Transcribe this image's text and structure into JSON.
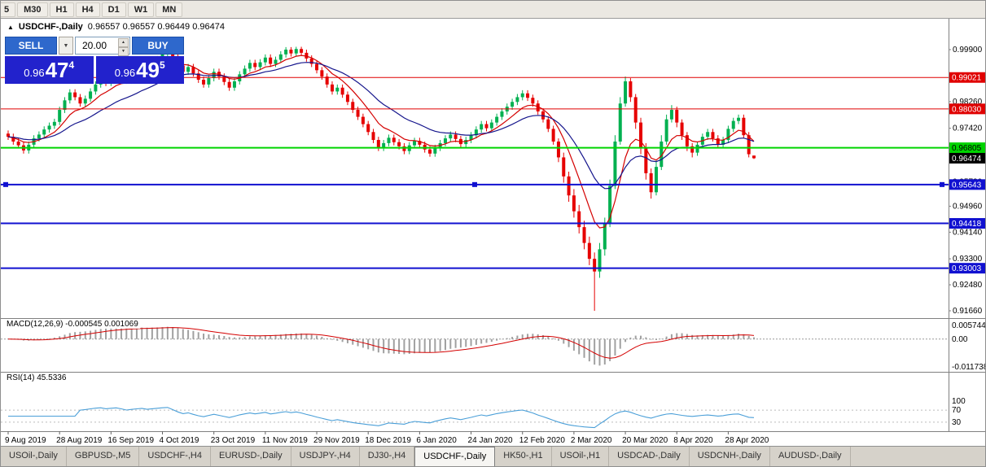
{
  "timeframe_toolbar": {
    "items": [
      "5",
      "M30",
      "H1",
      "H4",
      "D1",
      "W1",
      "MN"
    ]
  },
  "chart": {
    "title": "USDCHF-,Daily",
    "ohlc": "0.96557 0.96557 0.96449 0.96474"
  },
  "icons": {
    "collapse": "▲",
    "dropdown": "▼",
    "spin_up": "▲",
    "spin_down": "▼"
  },
  "trade_panel": {
    "sell_label": "SELL",
    "buy_label": "BUY",
    "volume": "20.00",
    "sell_price": {
      "prefix": "0.96",
      "big": "47",
      "sup": "4"
    },
    "buy_price": {
      "prefix": "0.96",
      "big": "49",
      "sup": "5"
    }
  },
  "colors": {
    "bull": "#00b050",
    "bear": "#e60000",
    "ma_fast": "#d40000",
    "ma_slow": "#15158c",
    "macd_hist": "#a0a0a0",
    "macd_signal": "#d40000",
    "rsi_line": "#4a9fd8",
    "panel_blue": "#2222cc",
    "button_blue": "#2e68cc"
  },
  "price_axis": {
    "ticks": [
      "0.99900",
      "0.98260",
      "0.97420",
      "0.95730",
      "0.94960",
      "0.94140",
      "0.93300",
      "0.92480",
      "0.91660"
    ],
    "current": {
      "value": 0.96474,
      "label": "0.96474",
      "bg": "#000000",
      "fg": "#ffffff"
    }
  },
  "levels": [
    {
      "value": 0.99021,
      "label": "0.99021",
      "color": "#e00000",
      "text_color": "#ffffff",
      "width": 1,
      "handles": false
    },
    {
      "value": 0.9803,
      "label": "0.98030",
      "color": "#e00000",
      "text_color": "#ffffff",
      "width": 1,
      "handles": false
    },
    {
      "value": 0.96805,
      "label": "0.96805",
      "color": "#00d400",
      "text_color": "#000000",
      "width": 2,
      "handles": false
    },
    {
      "value": 0.95643,
      "label": "0.95643",
      "color": "#1010d0",
      "text_color": "#ffffff",
      "width": 2,
      "handles": true
    },
    {
      "value": 0.94418,
      "label": "0.94418",
      "color": "#1010d0",
      "text_color": "#ffffff",
      "width": 2,
      "handles": false
    },
    {
      "value": 0.93003,
      "label": "0.93003",
      "color": "#1010d0",
      "text_color": "#ffffff",
      "width": 2,
      "handles": false
    }
  ],
  "macd_panel": {
    "label": "MACD(12,26,9) -0.000545 0.001069",
    "ticks": [
      "0.005744",
      "0.00",
      "-0.011738"
    ]
  },
  "rsi_panel": {
    "label": "RSI(14) 45.5336",
    "ticks": [
      "100",
      "70",
      "30"
    ],
    "levels": [
      70,
      30
    ]
  },
  "tabs": {
    "active_index": 6,
    "items": [
      "USOil-,Daily",
      "GBPUSD-,M5",
      "USDCHF-,H4",
      "EURUSD-,Daily",
      "USDJPY-,H4",
      "DJ30-,H4",
      "USDCHF-,Daily",
      "HK50-,H1",
      "USOil-,H1",
      "USDCAD-,Daily",
      "USDCNH-,Daily",
      "AUDUSD-,Daily"
    ]
  },
  "chart_data": {
    "type": "candlestick",
    "symbol": "USDCHF-",
    "timeframe": "Daily",
    "title": "USDCHF-,Daily",
    "x_labels": [
      "9 Aug 2019",
      "28 Aug 2019",
      "16 Sep 2019",
      "4 Oct 2019",
      "23 Oct 2019",
      "11 Nov 2019",
      "29 Nov 2019",
      "18 Dec 2019",
      "6 Jan 2020",
      "24 Jan 2020",
      "12 Feb 2020",
      "2 Mar 2020",
      "20 Mar 2020",
      "8 Apr 2020",
      "28 Apr 2020"
    ],
    "label_every": 10,
    "y_range": [
      0.9166,
      0.999
    ],
    "overlays": [
      {
        "name": "MA fast",
        "type": "ema",
        "period": 8,
        "color": "#d40000"
      },
      {
        "name": "MA slow",
        "type": "ema",
        "period": 20,
        "color": "#15158c"
      }
    ],
    "indicators": [
      {
        "name": "MACD",
        "params": [
          12,
          26,
          9
        ],
        "readout": "-0.000545 0.001069",
        "scale": [
          0.005744,
          0.0,
          -0.011738
        ]
      },
      {
        "name": "RSI",
        "params": [
          14
        ],
        "readout": "45.5336",
        "scale": [
          100,
          70,
          30
        ]
      }
    ],
    "candles": [
      [
        0.9725,
        0.9735,
        0.9705,
        0.9715
      ],
      [
        0.9715,
        0.9725,
        0.969,
        0.97
      ],
      [
        0.97,
        0.971,
        0.9678,
        0.9688
      ],
      [
        0.9688,
        0.9698,
        0.9662,
        0.9672
      ],
      [
        0.9672,
        0.97,
        0.9662,
        0.969
      ],
      [
        0.969,
        0.972,
        0.968,
        0.971
      ],
      [
        0.971,
        0.9732,
        0.97,
        0.9722
      ],
      [
        0.9722,
        0.9748,
        0.9712,
        0.9738
      ],
      [
        0.9738,
        0.976,
        0.9728,
        0.975
      ],
      [
        0.975,
        0.9772,
        0.974,
        0.9762
      ],
      [
        0.9762,
        0.981,
        0.9752,
        0.98
      ],
      [
        0.98,
        0.984,
        0.979,
        0.983
      ],
      [
        0.983,
        0.9865,
        0.982,
        0.9855
      ],
      [
        0.9855,
        0.9865,
        0.983,
        0.984
      ],
      [
        0.984,
        0.985,
        0.981,
        0.982
      ],
      [
        0.982,
        0.9845,
        0.981,
        0.9835
      ],
      [
        0.9835,
        0.9868,
        0.9825,
        0.9858
      ],
      [
        0.9858,
        0.989,
        0.9848,
        0.988
      ],
      [
        0.988,
        0.9905,
        0.987,
        0.9895
      ],
      [
        0.9895,
        0.9905,
        0.9875,
        0.9885
      ],
      [
        0.9885,
        0.991,
        0.9875,
        0.99
      ],
      [
        0.99,
        0.9925,
        0.989,
        0.9915
      ],
      [
        0.9915,
        0.9925,
        0.9895,
        0.9905
      ],
      [
        0.9905,
        0.9915,
        0.9882,
        0.9892
      ],
      [
        0.9892,
        0.9918,
        0.9882,
        0.9908
      ],
      [
        0.9908,
        0.9935,
        0.9898,
        0.9925
      ],
      [
        0.9925,
        0.995,
        0.9915,
        0.994
      ],
      [
        0.994,
        0.995,
        0.992,
        0.993
      ],
      [
        0.993,
        0.9955,
        0.992,
        0.9945
      ],
      [
        0.9945,
        0.997,
        0.9935,
        0.996
      ],
      [
        0.996,
        0.9985,
        0.995,
        0.9975
      ],
      [
        0.9975,
        0.9995,
        0.9965,
        0.9985
      ],
      [
        0.9985,
        0.9995,
        0.9955,
        0.9965
      ],
      [
        0.9965,
        0.9975,
        0.993,
        0.994
      ],
      [
        0.994,
        0.995,
        0.991,
        0.992
      ],
      [
        0.992,
        0.9945,
        0.991,
        0.9935
      ],
      [
        0.9935,
        0.9945,
        0.9905,
        0.9915
      ],
      [
        0.9915,
        0.9925,
        0.9885,
        0.9895
      ],
      [
        0.9895,
        0.9905,
        0.987,
        0.988
      ],
      [
        0.988,
        0.991,
        0.987,
        0.99
      ],
      [
        0.99,
        0.993,
        0.989,
        0.992
      ],
      [
        0.992,
        0.993,
        0.9895,
        0.9905
      ],
      [
        0.9905,
        0.9915,
        0.9878,
        0.9888
      ],
      [
        0.9888,
        0.9898,
        0.986,
        0.987
      ],
      [
        0.987,
        0.99,
        0.986,
        0.989
      ],
      [
        0.989,
        0.9922,
        0.988,
        0.9912
      ],
      [
        0.9912,
        0.994,
        0.9902,
        0.993
      ],
      [
        0.993,
        0.9958,
        0.992,
        0.9948
      ],
      [
        0.9948,
        0.9958,
        0.9925,
        0.9935
      ],
      [
        0.9935,
        0.996,
        0.9925,
        0.995
      ],
      [
        0.995,
        0.9975,
        0.994,
        0.9965
      ],
      [
        0.9965,
        0.9975,
        0.9935,
        0.9945
      ],
      [
        0.9945,
        0.9968,
        0.9935,
        0.9958
      ],
      [
        0.9958,
        0.9985,
        0.9948,
        0.9975
      ],
      [
        0.9975,
        0.9998,
        0.9965,
        0.999
      ],
      [
        0.999,
        0.9998,
        0.9968,
        0.9978
      ],
      [
        0.9978,
        0.9999,
        0.9968,
        0.9992
      ],
      [
        0.9992,
        0.9999,
        0.997,
        0.998
      ],
      [
        0.998,
        0.999,
        0.9952,
        0.9962
      ],
      [
        0.9962,
        0.9972,
        0.9935,
        0.9945
      ],
      [
        0.9945,
        0.9955,
        0.9915,
        0.9925
      ],
      [
        0.9925,
        0.9935,
        0.9895,
        0.9905
      ],
      [
        0.9905,
        0.9915,
        0.987,
        0.988
      ],
      [
        0.988,
        0.989,
        0.9848,
        0.9858
      ],
      [
        0.9858,
        0.988,
        0.9848,
        0.987
      ],
      [
        0.987,
        0.988,
        0.9838,
        0.9848
      ],
      [
        0.9848,
        0.9858,
        0.9815,
        0.9825
      ],
      [
        0.9825,
        0.9835,
        0.979,
        0.98
      ],
      [
        0.98,
        0.981,
        0.9768,
        0.9778
      ],
      [
        0.9778,
        0.9788,
        0.9745,
        0.9755
      ],
      [
        0.9755,
        0.9765,
        0.972,
        0.973
      ],
      [
        0.973,
        0.974,
        0.9695,
        0.9705
      ],
      [
        0.9705,
        0.9715,
        0.967,
        0.968
      ],
      [
        0.968,
        0.9705,
        0.967,
        0.9695
      ],
      [
        0.9695,
        0.9722,
        0.9685,
        0.9712
      ],
      [
        0.9712,
        0.9722,
        0.9688,
        0.9698
      ],
      [
        0.9698,
        0.9708,
        0.9675,
        0.9685
      ],
      [
        0.9685,
        0.9695,
        0.966,
        0.967
      ],
      [
        0.967,
        0.9698,
        0.966,
        0.9688
      ],
      [
        0.9688,
        0.9712,
        0.9678,
        0.9702
      ],
      [
        0.9702,
        0.9712,
        0.968,
        0.969
      ],
      [
        0.969,
        0.97,
        0.9665,
        0.9675
      ],
      [
        0.9675,
        0.9685,
        0.9652,
        0.9662
      ],
      [
        0.9662,
        0.969,
        0.9652,
        0.968
      ],
      [
        0.968,
        0.9705,
        0.967,
        0.9695
      ],
      [
        0.9695,
        0.972,
        0.9685,
        0.971
      ],
      [
        0.971,
        0.9732,
        0.97,
        0.9722
      ],
      [
        0.9722,
        0.9732,
        0.9698,
        0.9708
      ],
      [
        0.9708,
        0.9718,
        0.9682,
        0.9692
      ],
      [
        0.9692,
        0.9715,
        0.9682,
        0.9705
      ],
      [
        0.9705,
        0.973,
        0.9695,
        0.972
      ],
      [
        0.972,
        0.9748,
        0.971,
        0.9738
      ],
      [
        0.9738,
        0.9765,
        0.9728,
        0.9755
      ],
      [
        0.9755,
        0.9765,
        0.9732,
        0.9742
      ],
      [
        0.9742,
        0.977,
        0.9732,
        0.976
      ],
      [
        0.976,
        0.9788,
        0.975,
        0.9778
      ],
      [
        0.9778,
        0.9805,
        0.9768,
        0.9795
      ],
      [
        0.9795,
        0.982,
        0.9785,
        0.981
      ],
      [
        0.981,
        0.9835,
        0.98,
        0.9825
      ],
      [
        0.9825,
        0.985,
        0.9815,
        0.984
      ],
      [
        0.984,
        0.9862,
        0.983,
        0.9852
      ],
      [
        0.9852,
        0.9862,
        0.9828,
        0.9838
      ],
      [
        0.9838,
        0.9848,
        0.981,
        0.982
      ],
      [
        0.982,
        0.983,
        0.9785,
        0.9795
      ],
      [
        0.9795,
        0.9805,
        0.976,
        0.977
      ],
      [
        0.977,
        0.978,
        0.973,
        0.974
      ],
      [
        0.974,
        0.975,
        0.969,
        0.97
      ],
      [
        0.97,
        0.971,
        0.9635,
        0.965
      ],
      [
        0.965,
        0.9665,
        0.957,
        0.959
      ],
      [
        0.959,
        0.9605,
        0.951,
        0.953
      ],
      [
        0.953,
        0.955,
        0.946,
        0.948
      ],
      [
        0.948,
        0.95,
        0.941,
        0.943
      ],
      [
        0.943,
        0.945,
        0.936,
        0.938
      ],
      [
        0.938,
        0.94,
        0.931,
        0.933
      ],
      [
        0.933,
        0.935,
        0.9166,
        0.929
      ],
      [
        0.929,
        0.938,
        0.927,
        0.936
      ],
      [
        0.936,
        0.946,
        0.934,
        0.944
      ],
      [
        0.944,
        0.958,
        0.943,
        0.956
      ],
      [
        0.956,
        0.972,
        0.955,
        0.97
      ],
      [
        0.97,
        0.984,
        0.969,
        0.982
      ],
      [
        0.982,
        0.9905,
        0.981,
        0.989
      ],
      [
        0.989,
        0.99,
        0.9825,
        0.984
      ],
      [
        0.984,
        0.985,
        0.974,
        0.976
      ],
      [
        0.976,
        0.9775,
        0.966,
        0.968
      ],
      [
        0.968,
        0.9695,
        0.958,
        0.96
      ],
      [
        0.96,
        0.9615,
        0.952,
        0.954
      ],
      [
        0.954,
        0.964,
        0.953,
        0.962
      ],
      [
        0.962,
        0.972,
        0.961,
        0.97
      ],
      [
        0.97,
        0.9785,
        0.969,
        0.977
      ],
      [
        0.977,
        0.9815,
        0.976,
        0.98
      ],
      [
        0.98,
        0.981,
        0.9745,
        0.976
      ],
      [
        0.976,
        0.977,
        0.9705,
        0.972
      ],
      [
        0.972,
        0.973,
        0.967,
        0.9685
      ],
      [
        0.9685,
        0.9695,
        0.965,
        0.9665
      ],
      [
        0.9665,
        0.97,
        0.9655,
        0.969
      ],
      [
        0.969,
        0.9725,
        0.968,
        0.9715
      ],
      [
        0.9715,
        0.974,
        0.9705,
        0.973
      ],
      [
        0.973,
        0.974,
        0.97,
        0.971
      ],
      [
        0.971,
        0.972,
        0.968,
        0.969
      ],
      [
        0.969,
        0.9715,
        0.968,
        0.9705
      ],
      [
        0.9705,
        0.975,
        0.9695,
        0.974
      ],
      [
        0.974,
        0.9775,
        0.973,
        0.9765
      ],
      [
        0.9765,
        0.9785,
        0.9755,
        0.9775
      ],
      [
        0.9775,
        0.9785,
        0.971,
        0.972
      ],
      [
        0.972,
        0.973,
        0.965,
        0.966
      ],
      [
        0.96557,
        0.96557,
        0.96449,
        0.96474
      ]
    ]
  }
}
